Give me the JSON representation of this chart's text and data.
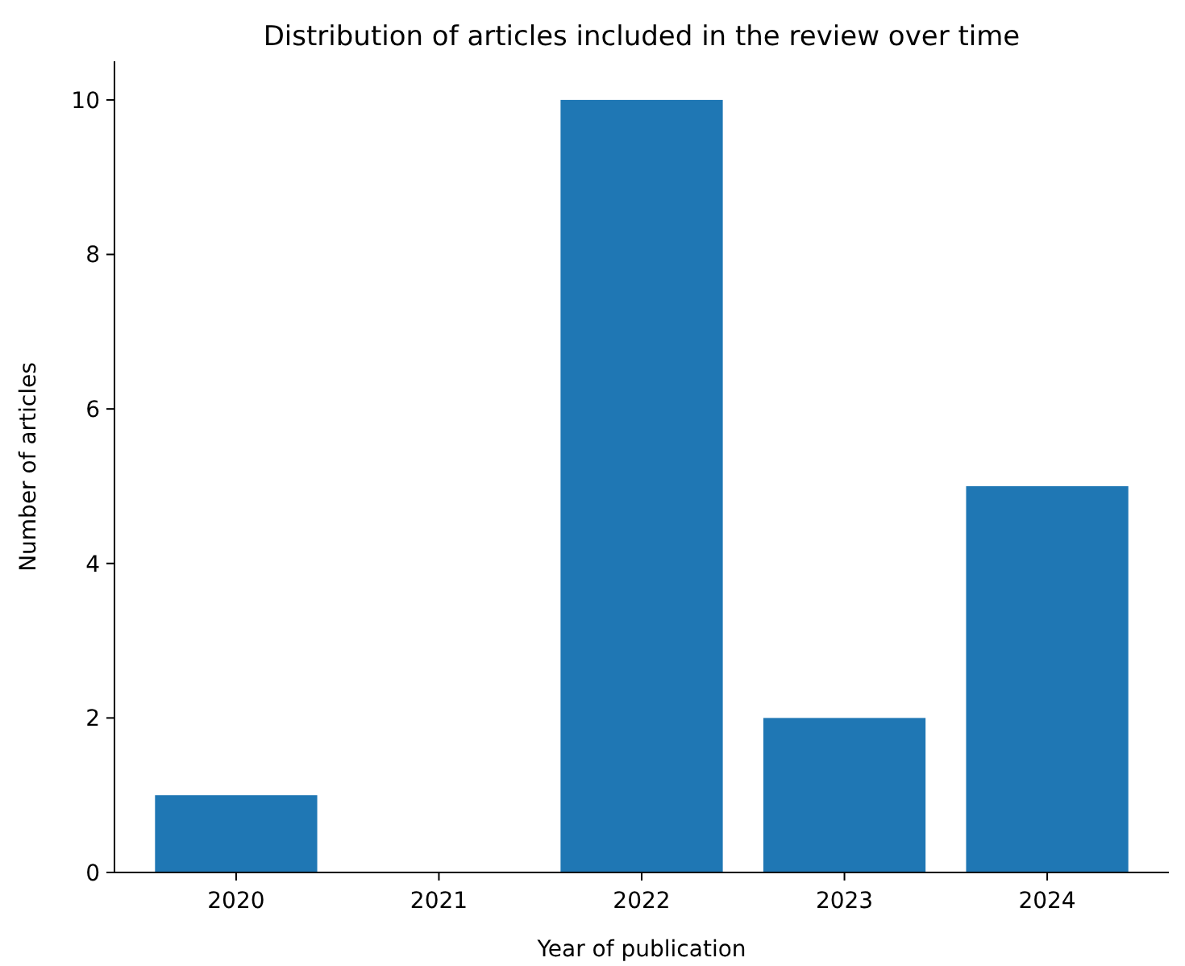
{
  "chart_data": {
    "type": "bar",
    "title": "Distribution of articles included in the review over time",
    "xlabel": "Year of publication",
    "ylabel": "Number of articles",
    "categories": [
      "2020",
      "2021",
      "2022",
      "2023",
      "2024"
    ],
    "values": [
      1,
      0,
      10,
      2,
      5
    ],
    "color": "#1f77b4",
    "ylim": [
      0,
      10.5
    ],
    "yticks": [
      0,
      2,
      4,
      6,
      8,
      10
    ]
  }
}
